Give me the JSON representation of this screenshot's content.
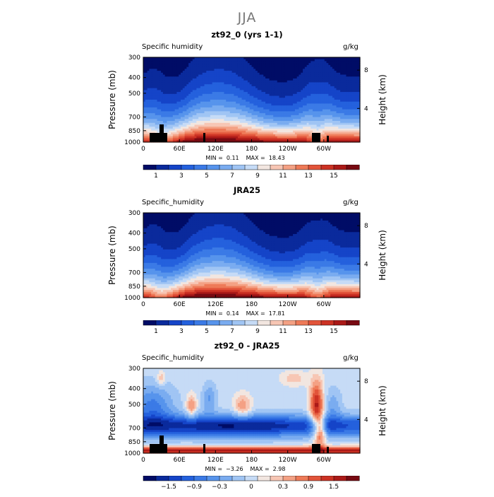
{
  "page_title": "JJA",
  "chart_data": [
    {
      "type": "heatmap",
      "title": "zt92_0 (yrs 1-1)",
      "variable_label": "Specific humidity",
      "units": "g/kg",
      "ylabel": "Pressure (mb)",
      "y2label": "Height (km)",
      "x_ticks": [
        "0",
        "60E",
        "120E",
        "180",
        "120W",
        "60W"
      ],
      "y_ticks": [
        "300",
        "400",
        "500",
        "700",
        "850",
        "1000"
      ],
      "y2_ticks": [
        "8",
        "4"
      ],
      "min_label": "MIN =",
      "min_value": "0.11",
      "max_label": "MAX =",
      "max_value": "18.43",
      "colorbar_labels": [
        "1",
        "3",
        "5",
        "7",
        "9",
        "11",
        "13",
        "15"
      ],
      "palette": [
        "#000c66",
        "#0a2a9c",
        "#1544c8",
        "#2461dd",
        "#3b7ae6",
        "#5794ec",
        "#7aacf0",
        "#a0c5f4",
        "#c6dbf6",
        "#f2e6e0",
        "#f7c6b4",
        "#f4a184",
        "#ee7a58",
        "#e2543a",
        "#cc3224",
        "#ab1a18",
        "#780a12"
      ],
      "levels_min": 0,
      "levels_max": 16
    },
    {
      "type": "heatmap",
      "title": "JRA25",
      "variable_label": "Specific_humidity",
      "units": "g/kg",
      "ylabel": "Pressure (mb)",
      "y2label": "Height (km)",
      "x_ticks": [
        "0",
        "60E",
        "120E",
        "180",
        "120W",
        "60W"
      ],
      "y_ticks": [
        "300",
        "400",
        "500",
        "700",
        "850",
        "1000"
      ],
      "y2_ticks": [
        "8",
        "4"
      ],
      "min_label": "MIN =",
      "min_value": "0.14",
      "max_label": "MAX =",
      "max_value": "17.81",
      "colorbar_labels": [
        "1",
        "3",
        "5",
        "7",
        "9",
        "11",
        "13",
        "15"
      ],
      "palette": [
        "#000c66",
        "#0a2a9c",
        "#1544c8",
        "#2461dd",
        "#3b7ae6",
        "#5794ec",
        "#7aacf0",
        "#a0c5f4",
        "#c6dbf6",
        "#f2e6e0",
        "#f7c6b4",
        "#f4a184",
        "#ee7a58",
        "#e2543a",
        "#cc3224",
        "#ab1a18",
        "#780a12"
      ],
      "levels_min": 0,
      "levels_max": 16
    },
    {
      "type": "heatmap",
      "title": "zt92_0 - JRA25",
      "variable_label": "Specific_humidity",
      "units": "g/kg",
      "ylabel": "Pressure (mb)",
      "y2label": "Height (km)",
      "x_ticks": [
        "0",
        "60E",
        "120E",
        "180",
        "120W",
        "60W"
      ],
      "y_ticks": [
        "300",
        "400",
        "500",
        "700",
        "850",
        "1000"
      ],
      "y2_ticks": [
        "8",
        "4"
      ],
      "min_label": "MIN =",
      "min_value": "−3.26",
      "max_label": "MAX =",
      "max_value": "2.98",
      "colorbar_labels": [
        "−1.5",
        "−0.9",
        "−0.3",
        "0",
        "0.3",
        "0.9",
        "1.5"
      ],
      "palette": [
        "#000c66",
        "#0a2a9c",
        "#1544c8",
        "#2461dd",
        "#3b7ae6",
        "#5794ec",
        "#7aacf0",
        "#a0c5f4",
        "#c6dbf6",
        "#f2e6e0",
        "#f7c6b4",
        "#f4a184",
        "#ee7a58",
        "#e2543a",
        "#cc3224",
        "#ab1a18",
        "#780a12"
      ],
      "levels_min": -2.0,
      "levels_max": 2.0
    }
  ]
}
